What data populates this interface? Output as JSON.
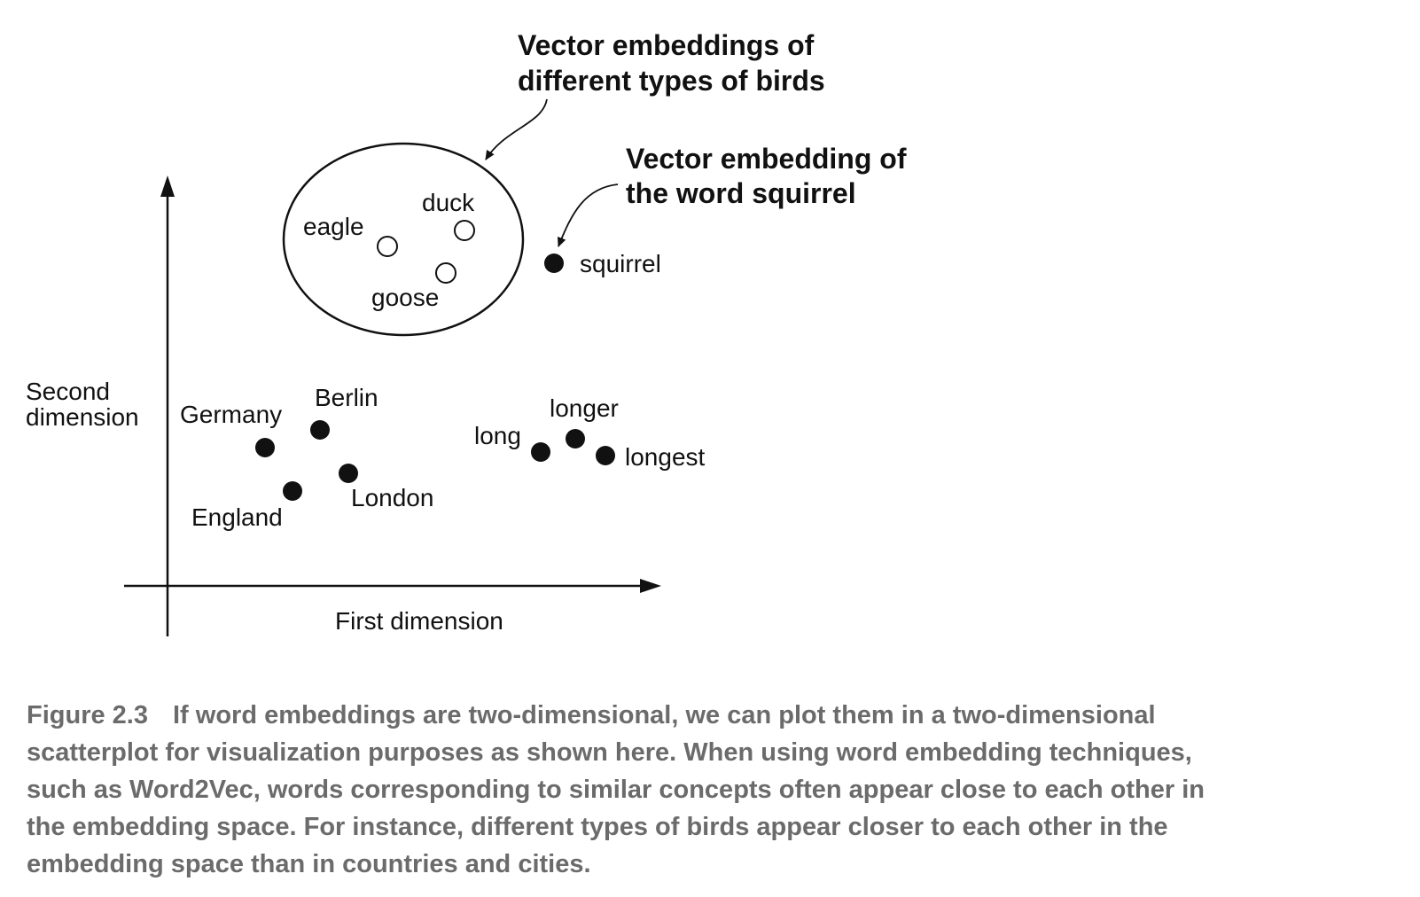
{
  "callouts": {
    "birds_line1": "Vector embeddings of",
    "birds_line2": "different types of birds",
    "squirrel_line1": "Vector embedding of",
    "squirrel_line2": "the word squirrel"
  },
  "axes": {
    "y_label_line1": "Second",
    "y_label_line2": "dimension",
    "x_label": "First dimension"
  },
  "points": {
    "eagle": {
      "label": "eagle",
      "marker": "hollow"
    },
    "duck": {
      "label": "duck",
      "marker": "hollow"
    },
    "goose": {
      "label": "goose",
      "marker": "hollow"
    },
    "squirrel": {
      "label": "squirrel",
      "marker": "filled"
    },
    "germany": {
      "label": "Germany",
      "marker": "filled"
    },
    "berlin": {
      "label": "Berlin",
      "marker": "filled"
    },
    "england": {
      "label": "England",
      "marker": "filled"
    },
    "london": {
      "label": "London",
      "marker": "filled"
    },
    "long": {
      "label": "long",
      "marker": "filled"
    },
    "longer": {
      "label": "longer",
      "marker": "filled"
    },
    "longest": {
      "label": "longest",
      "marker": "filled"
    }
  },
  "caption": {
    "figure_number": "Figure 2.3",
    "text": "If word embeddings are two-dimensional, we can plot them in a two-dimensional scatterplot for visualization purposes as shown here. When using word embedding techniques, such as Word2Vec, words corresponding to similar concepts often appear close to each other in the embedding space. For instance, different types of birds appear closer to each other in the embedding space than in countries and cities."
  },
  "colors": {
    "ink": "#111111",
    "caption": "#6b6b6b"
  }
}
